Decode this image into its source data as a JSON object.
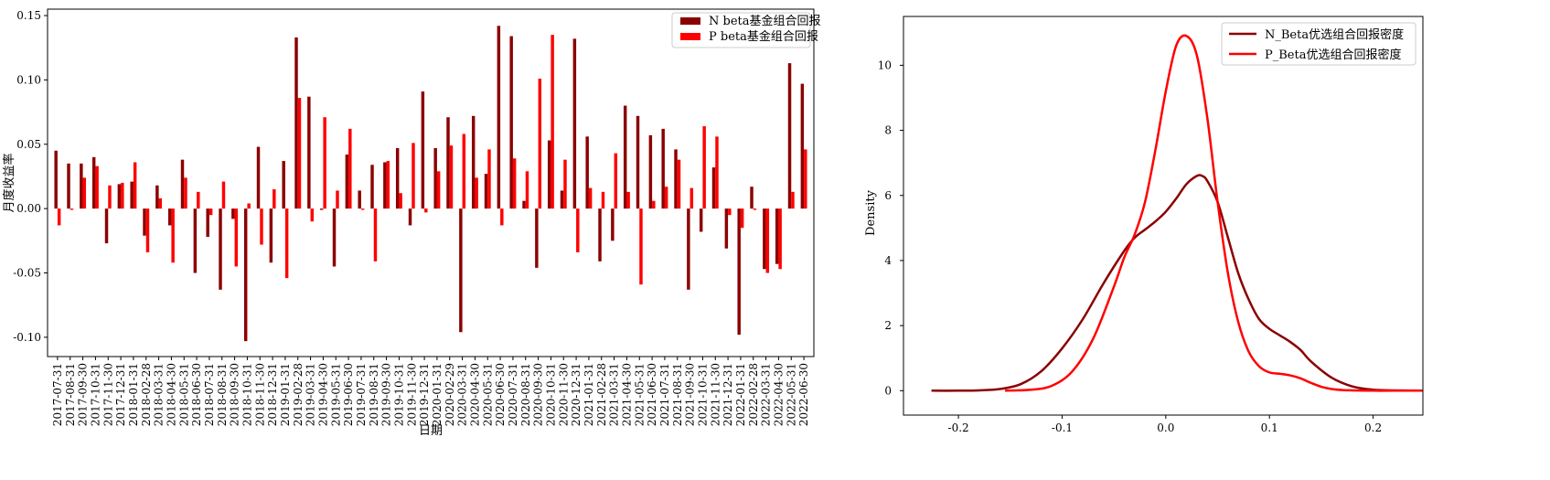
{
  "chart_data": [
    {
      "type": "bar",
      "ylabel": "月度收益率",
      "xlabel": "日期",
      "ylim": [
        -0.115,
        0.155
      ],
      "yticks": [
        -0.1,
        -0.05,
        0.0,
        0.05,
        0.1,
        0.15
      ],
      "ytick_labels": [
        "-0.10",
        "-0.05",
        "0.00",
        "0.05",
        "0.10",
        "0.15"
      ],
      "grid": false,
      "legend_position": "top-right",
      "categories": [
        "2017-07-31",
        "2017-08-31",
        "2017-09-30",
        "2017-10-31",
        "2017-11-30",
        "2017-12-31",
        "2018-01-31",
        "2018-02-28",
        "2018-03-31",
        "2018-04-30",
        "2018-05-31",
        "2018-06-30",
        "2018-07-31",
        "2018-08-31",
        "2018-09-30",
        "2018-10-31",
        "2018-11-30",
        "2018-12-31",
        "2019-01-31",
        "2019-02-28",
        "2019-03-31",
        "2019-04-30",
        "2019-05-31",
        "2019-06-30",
        "2019-07-31",
        "2019-08-31",
        "2019-09-30",
        "2019-10-31",
        "2019-11-30",
        "2019-12-31",
        "2020-01-31",
        "2020-02-29",
        "2020-03-31",
        "2020-04-30",
        "2020-05-31",
        "2020-06-30",
        "2020-07-31",
        "2020-08-31",
        "2020-09-30",
        "2020-10-31",
        "2020-11-30",
        "2020-12-31",
        "2021-01-31",
        "2021-02-28",
        "2021-03-31",
        "2021-04-30",
        "2021-05-31",
        "2021-06-30",
        "2021-07-31",
        "2021-08-31",
        "2021-09-30",
        "2021-10-31",
        "2021-11-30",
        "2021-12-31",
        "2022-01-31",
        "2022-02-28",
        "2022-03-31",
        "2022-04-30",
        "2022-05-31",
        "2022-06-30"
      ],
      "series": [
        {
          "name": "N beta基金组合回报",
          "color": "#8b0000",
          "values": [
            0.045,
            0.035,
            0.035,
            0.04,
            -0.027,
            0.019,
            0.021,
            -0.021,
            0.018,
            -0.013,
            0.038,
            -0.05,
            -0.022,
            -0.063,
            -0.008,
            -0.103,
            0.048,
            -0.042,
            0.037,
            0.133,
            0.087,
            -0.001,
            -0.045,
            0.042,
            0.014,
            0.034,
            0.036,
            0.047,
            -0.013,
            0.091,
            0.047,
            0.071,
            -0.096,
            0.072,
            0.027,
            0.142,
            0.134,
            0.006,
            -0.046,
            0.053,
            0.014,
            0.132,
            0.056,
            -0.041,
            -0.025,
            0.08,
            0.072,
            0.057,
            0.062,
            0.046,
            -0.063,
            -0.018,
            0.032,
            -0.031,
            -0.098,
            0.017,
            -0.047,
            -0.043,
            0.113,
            0.097
          ]
        },
        {
          "name": "P beta基金组合回报",
          "color": "#ff0000",
          "values": [
            -0.013,
            -0.001,
            0.024,
            0.033,
            0.018,
            0.02,
            0.036,
            -0.034,
            0.008,
            -0.042,
            0.024,
            0.013,
            -0.005,
            0.021,
            -0.045,
            0.004,
            -0.028,
            0.015,
            -0.054,
            0.086,
            -0.01,
            0.071,
            0.014,
            0.062,
            -0.001,
            -0.041,
            0.037,
            0.012,
            0.051,
            -0.003,
            0.029,
            0.049,
            0.058,
            0.024,
            0.046,
            -0.013,
            0.039,
            0.029,
            0.101,
            0.135,
            0.038,
            -0.034,
            0.016,
            0.013,
            0.043,
            0.013,
            -0.059,
            0.006,
            0.017,
            0.038,
            0.016,
            0.064,
            0.056,
            -0.005,
            -0.015,
            -0.001,
            -0.05,
            -0.047,
            0.013,
            0.046
          ]
        }
      ]
    },
    {
      "type": "line",
      "ylabel": "Density",
      "xlabel": "",
      "xlim": [
        -0.253,
        0.248
      ],
      "ylim": [
        -0.75,
        11.5
      ],
      "xticks": [
        -0.2,
        -0.1,
        0.0,
        0.1,
        0.2
      ],
      "xtick_labels": [
        "-0.2",
        "-0.1",
        "0.0",
        "0.1",
        "0.2"
      ],
      "yticks": [
        0,
        2,
        4,
        6,
        8,
        10
      ],
      "ytick_labels": [
        "0",
        "2",
        "4",
        "6",
        "8",
        "10"
      ],
      "grid": false,
      "legend_position": "top-right",
      "series": [
        {
          "name": "N_Beta优选组合回报密度",
          "color": "#8b0000",
          "x": [
            -0.226,
            -0.2,
            -0.18,
            -0.16,
            -0.14,
            -0.12,
            -0.1,
            -0.08,
            -0.06,
            -0.04,
            -0.03,
            -0.02,
            -0.01,
            0.0,
            0.01,
            0.02,
            0.03,
            0.035,
            0.04,
            0.05,
            0.06,
            0.07,
            0.08,
            0.09,
            0.1,
            0.11,
            0.12,
            0.13,
            0.14,
            0.16,
            0.18,
            0.2,
            0.22,
            0.248
          ],
          "y": [
            0.0,
            0.0,
            0.01,
            0.05,
            0.2,
            0.6,
            1.3,
            2.2,
            3.3,
            4.3,
            4.7,
            4.95,
            5.2,
            5.5,
            5.9,
            6.35,
            6.6,
            6.6,
            6.45,
            5.8,
            4.7,
            3.6,
            2.8,
            2.2,
            1.9,
            1.7,
            1.5,
            1.25,
            0.9,
            0.4,
            0.13,
            0.03,
            0.01,
            0.0
          ]
        },
        {
          "name": "P_Beta优选组合回报密度",
          "color": "#ff0000",
          "x": [
            -0.155,
            -0.13,
            -0.11,
            -0.09,
            -0.07,
            -0.05,
            -0.04,
            -0.03,
            -0.02,
            -0.01,
            0.0,
            0.01,
            0.02,
            0.03,
            0.04,
            0.05,
            0.06,
            0.07,
            0.08,
            0.09,
            0.1,
            0.11,
            0.12,
            0.13,
            0.14,
            0.15,
            0.16,
            0.17,
            0.18,
            0.2,
            0.22,
            0.248
          ],
          "y": [
            0.0,
            0.03,
            0.15,
            0.6,
            1.6,
            3.2,
            4.1,
            4.8,
            5.8,
            7.4,
            9.2,
            10.6,
            10.9,
            10.3,
            8.4,
            5.8,
            3.6,
            2.1,
            1.2,
            0.75,
            0.56,
            0.52,
            0.47,
            0.38,
            0.24,
            0.12,
            0.05,
            0.02,
            0.01,
            0.0,
            0.0,
            0.0
          ]
        }
      ]
    }
  ]
}
